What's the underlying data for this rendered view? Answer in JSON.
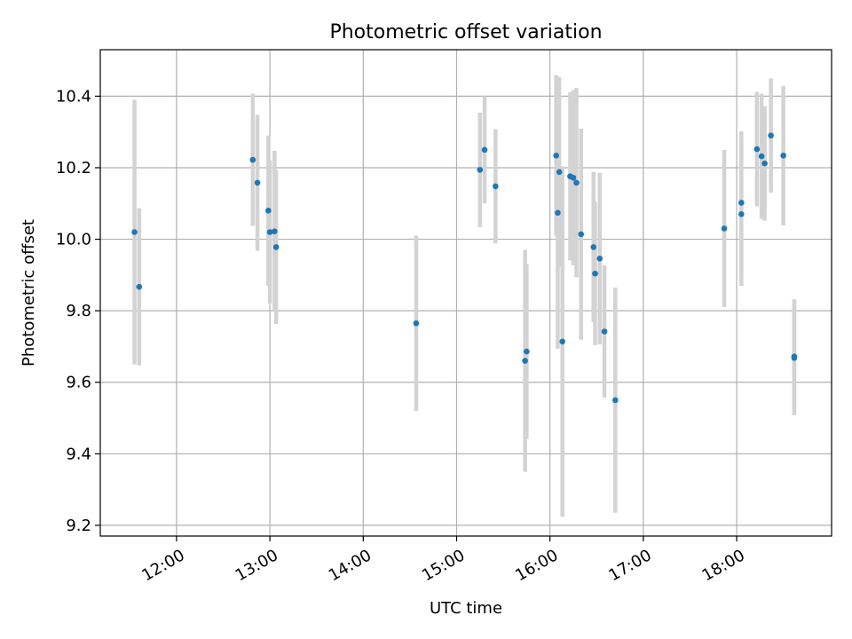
{
  "chart_data": {
    "type": "scatter",
    "title": "Photometric offset variation",
    "xlabel": "UTC time",
    "ylabel": "Photometric offset",
    "xlim": [
      "11:11",
      "19:01"
    ],
    "ylim": [
      9.17,
      10.53
    ],
    "x_ticks": [
      "12:00",
      "13:00",
      "14:00",
      "15:00",
      "16:00",
      "17:00",
      "18:00"
    ],
    "y_ticks": [
      9.2,
      9.4,
      9.6,
      9.8,
      10.0,
      10.2,
      10.4
    ],
    "y_tick_labels": [
      "9.2",
      "9.4",
      "9.6",
      "9.8",
      "10.0",
      "10.2",
      "10.4"
    ],
    "grid": true,
    "colors": {
      "point": "#1f77b4",
      "errorbar": "#d3d3d3",
      "grid": "#b0b0b0"
    },
    "points": [
      {
        "x": "11:33",
        "y": 10.02,
        "err": 0.37
      },
      {
        "x": "11:36",
        "y": 9.867,
        "err": 0.22
      },
      {
        "x": "12:49",
        "y": 10.222,
        "err": 0.185
      },
      {
        "x": "12:52",
        "y": 10.158,
        "err": 0.19
      },
      {
        "x": "12:59",
        "y": 10.08,
        "err": 0.21
      },
      {
        "x": "13:00",
        "y": 10.02,
        "err": 0.2
      },
      {
        "x": "13:03",
        "y": 10.022,
        "err": 0.225
      },
      {
        "x": "13:04",
        "y": 9.978,
        "err": 0.215
      },
      {
        "x": "14:34",
        "y": 9.765,
        "err": 0.245
      },
      {
        "x": "15:15",
        "y": 10.194,
        "err": 0.16
      },
      {
        "x": "15:18",
        "y": 10.25,
        "err": 0.15
      },
      {
        "x": "15:25",
        "y": 10.148,
        "err": 0.16
      },
      {
        "x": "15:44",
        "y": 9.66,
        "err": 0.31
      },
      {
        "x": "15:45",
        "y": 9.686,
        "err": 0.245
      },
      {
        "x": "16:04",
        "y": 10.234,
        "err": 0.225
      },
      {
        "x": "16:05",
        "y": 10.074,
        "err": 0.38
      },
      {
        "x": "16:06",
        "y": 10.188,
        "err": 0.265
      },
      {
        "x": "16:08",
        "y": 9.714,
        "err": 0.49
      },
      {
        "x": "16:13",
        "y": 10.176,
        "err": 0.235
      },
      {
        "x": "16:15",
        "y": 10.172,
        "err": 0.245
      },
      {
        "x": "16:17",
        "y": 10.158,
        "err": 0.265
      },
      {
        "x": "16:20",
        "y": 10.014,
        "err": 0.295
      },
      {
        "x": "16:28",
        "y": 9.978,
        "err": 0.21
      },
      {
        "x": "16:29",
        "y": 9.904,
        "err": 0.2
      },
      {
        "x": "16:32",
        "y": 9.946,
        "err": 0.24
      },
      {
        "x": "16:35",
        "y": 9.742,
        "err": 0.185
      },
      {
        "x": "16:42",
        "y": 9.55,
        "err": 0.315
      },
      {
        "x": "17:52",
        "y": 10.03,
        "err": 0.22
      },
      {
        "x": "18:03",
        "y": 10.102,
        "err": 0.2
      },
      {
        "x": "18:03",
        "y": 10.07,
        "err": 0.2
      },
      {
        "x": "18:13",
        "y": 10.252,
        "err": 0.16
      },
      {
        "x": "18:16",
        "y": 10.232,
        "err": 0.175
      },
      {
        "x": "18:18",
        "y": 10.212,
        "err": 0.16
      },
      {
        "x": "18:22",
        "y": 10.29,
        "err": 0.16
      },
      {
        "x": "18:30",
        "y": 10.234,
        "err": 0.195
      },
      {
        "x": "18:37",
        "y": 9.672,
        "err": 0.16
      },
      {
        "x": "18:37",
        "y": 9.668,
        "err": 0.16
      }
    ]
  }
}
